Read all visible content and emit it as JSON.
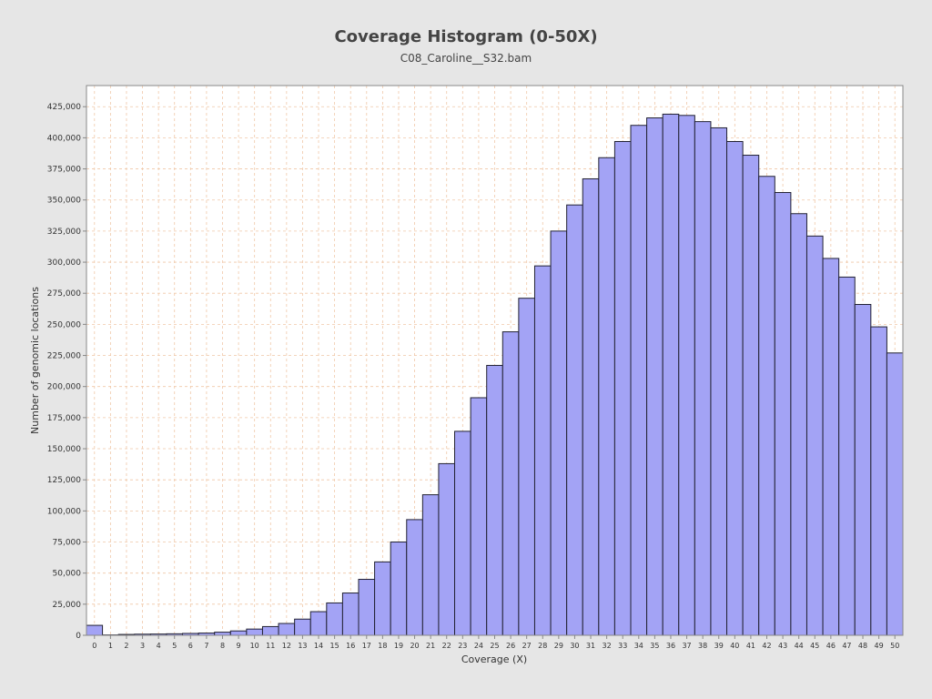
{
  "chart_data": {
    "type": "bar",
    "title": "Coverage Histogram (0-50X)",
    "subtitle": "C08_Caroline__S32.bam",
    "xlabel": "Coverage (X)",
    "ylabel": "Number of genomic locations",
    "categories": [
      "0",
      "1",
      "2",
      "3",
      "4",
      "5",
      "6",
      "7",
      "8",
      "9",
      "10",
      "11",
      "12",
      "13",
      "14",
      "15",
      "16",
      "17",
      "18",
      "19",
      "20",
      "21",
      "22",
      "23",
      "24",
      "25",
      "26",
      "27",
      "28",
      "29",
      "30",
      "31",
      "32",
      "33",
      "34",
      "35",
      "36",
      "37",
      "38",
      "39",
      "40",
      "41",
      "42",
      "43",
      "44",
      "45",
      "46",
      "47",
      "48",
      "49",
      "50"
    ],
    "values": [
      8000,
      300,
      700,
      900,
      1000,
      1200,
      1500,
      1800,
      2500,
      3500,
      5000,
      7000,
      9500,
      13000,
      19000,
      26000,
      34000,
      45000,
      59000,
      75000,
      93000,
      113000,
      138000,
      164000,
      191000,
      217000,
      244000,
      271000,
      297000,
      325000,
      346000,
      367000,
      384000,
      397000,
      410000,
      416000,
      419000,
      418000,
      413000,
      408000,
      397000,
      386000,
      369000,
      356000,
      339000,
      321000,
      303000,
      288000,
      266000,
      248000,
      227000
    ],
    "yticks": [
      "0",
      "25,000",
      "50,000",
      "75,000",
      "100,000",
      "125,000",
      "150,000",
      "175,000",
      "200,000",
      "225,000",
      "250,000",
      "275,000",
      "300,000",
      "325,000",
      "350,000",
      "375,000",
      "400,000",
      "425,000"
    ],
    "ylim": [
      0,
      442000
    ],
    "grid": true,
    "bar_color": "#a3a3f5",
    "bar_stroke": "#222233",
    "grid_color": "#f0c8a8",
    "plot_background": "#ffffff",
    "page_background": "#e6e6e6"
  }
}
